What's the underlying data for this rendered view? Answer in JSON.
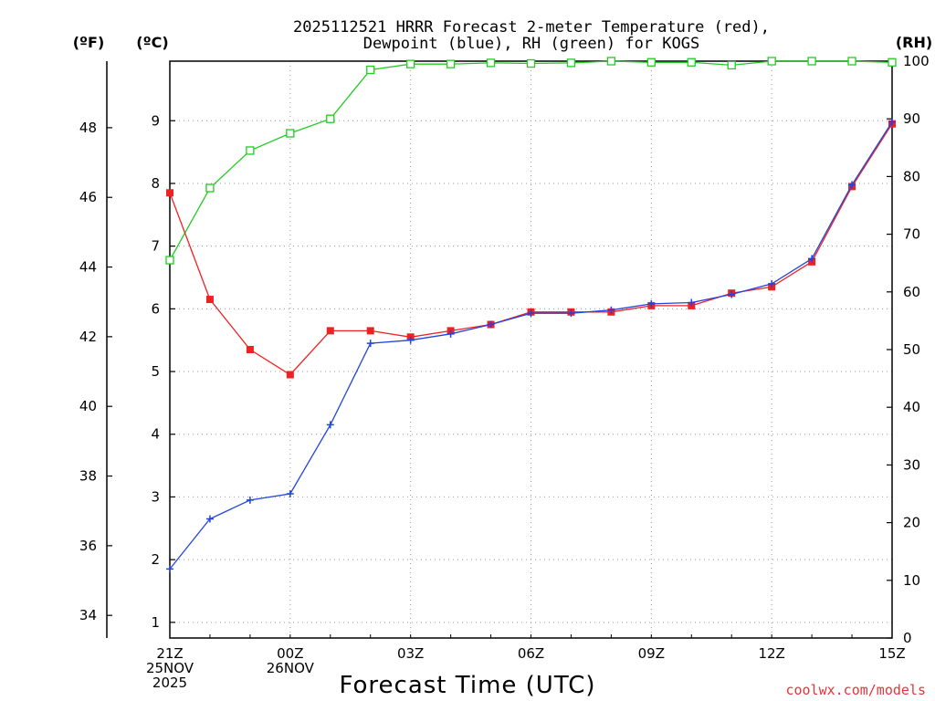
{
  "chart_data": {
    "type": "line",
    "title_line1": "2025112521 HRRR Forecast 2-meter Temperature (red),",
    "title_line2": "Dewpoint (blue), RH (green) for KOGS",
    "units": {
      "f": "(ºF)",
      "c": "(ºC)",
      "rh": "(RH)"
    },
    "xlabel": "Forecast Time (UTC)",
    "credit": "coolwx.com/models",
    "x_hours": [
      0,
      1,
      2,
      3,
      4,
      5,
      6,
      7,
      8,
      9,
      10,
      11,
      12,
      13,
      14,
      15,
      16,
      17,
      18
    ],
    "x_ticks": [
      {
        "hour": 0,
        "lines": [
          "21Z",
          "25NOV",
          "2025"
        ]
      },
      {
        "hour": 3,
        "lines": [
          "00Z",
          "26NOV"
        ]
      },
      {
        "hour": 6,
        "lines": [
          "03Z"
        ]
      },
      {
        "hour": 9,
        "lines": [
          "06Z"
        ]
      },
      {
        "hour": 12,
        "lines": [
          "09Z"
        ]
      },
      {
        "hour": 15,
        "lines": [
          "12Z"
        ]
      },
      {
        "hour": 18,
        "lines": [
          "15Z"
        ]
      }
    ],
    "c_axis": {
      "range": [
        0.75,
        9.95
      ],
      "ticks": [
        1,
        2,
        3,
        4,
        5,
        6,
        7,
        8,
        9
      ]
    },
    "f_axis": {
      "ticks": [
        34,
        36,
        38,
        40,
        42,
        44,
        46,
        48
      ]
    },
    "rh_axis": {
      "range": [
        0,
        100
      ],
      "ticks": [
        0,
        10,
        20,
        30,
        40,
        50,
        60,
        70,
        80,
        90,
        100
      ]
    },
    "series": [
      {
        "name": "Temperature",
        "unit": "C",
        "color": "#ee2222",
        "marker": "square-filled",
        "values": [
          7.85,
          6.15,
          5.35,
          4.95,
          5.65,
          5.65,
          5.55,
          5.65,
          5.75,
          5.95,
          5.95,
          5.95,
          6.05,
          6.05,
          6.25,
          6.35,
          6.75,
          7.95,
          8.95
        ]
      },
      {
        "name": "Dewpoint",
        "unit": "C",
        "color": "#2244dd",
        "marker": "plus",
        "values": [
          1.85,
          2.65,
          2.95,
          3.05,
          4.15,
          5.45,
          5.5,
          5.6,
          5.75,
          5.93,
          5.93,
          5.98,
          6.08,
          6.1,
          6.23,
          6.4,
          6.8,
          7.98,
          8.98
        ]
      },
      {
        "name": "RH",
        "unit": "%",
        "color": "#22cc22",
        "marker": "square-open",
        "values": [
          65.5,
          78,
          84.5,
          87.5,
          90,
          98.5,
          99.5,
          99.5,
          99.7,
          99.6,
          99.7,
          100,
          99.8,
          99.8,
          99.3,
          100,
          100,
          100,
          99.8
        ]
      }
    ]
  }
}
